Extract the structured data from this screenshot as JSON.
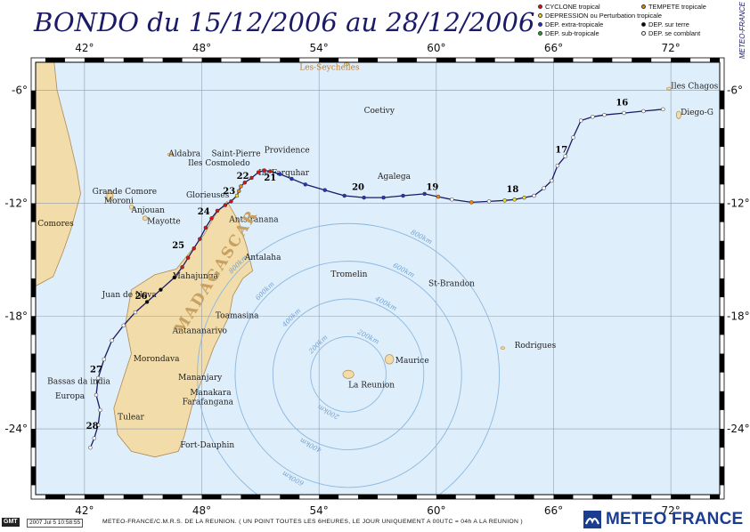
{
  "title": "BONDO du 15/12/2006 au 28/12/2006",
  "side_credit": "METEO-FRANCE",
  "legend": {
    "items": [
      {
        "label": "CYCLONE tropical",
        "color": "#dd1111"
      },
      {
        "label": "TEMPETE tropicale",
        "color": "#ee8811"
      },
      {
        "label": "DEPRESSION ou Perturbation tropicale",
        "color": "#eedd22"
      },
      {
        "label": "DEP. extra-tropicale",
        "color": "#2233cc"
      },
      {
        "label": "DEP. sur terre",
        "color": "#000000"
      },
      {
        "label": "DEP. sub-tropicale",
        "color": "#22aa22"
      },
      {
        "label": "DEP. se comblant",
        "color": "#ffffff"
      }
    ]
  },
  "map": {
    "lon_range": [
      39.5,
      74.5
    ],
    "lat_range": [
      -27.5,
      -4.5
    ],
    "lon_ticks": [
      42,
      48,
      54,
      60,
      66,
      72
    ],
    "lon_tick_labels": [
      "42°",
      "48°",
      "54°",
      "60°",
      "66°",
      "72°"
    ],
    "lat_ticks": [
      -6,
      -12,
      -18,
      -24
    ],
    "lat_tick_labels": [
      "-6°",
      "-12°",
      "-18°",
      "-24°"
    ],
    "ocean_color": "#dfeefb",
    "land_color": "#f1dcaa",
    "track_color": "#1a1a66",
    "range_circle_color": "#8bb8e0",
    "range_center": [
      55.5,
      -21.1
    ],
    "range_circles": [
      {
        "radius_km": 200,
        "label": "200km"
      },
      {
        "radius_km": 400,
        "label": "400km"
      },
      {
        "radius_km": 600,
        "label": "600km"
      },
      {
        "radius_km": 800,
        "label": "800km"
      }
    ]
  },
  "track": [
    [
      71.6,
      -7.0,
      "white"
    ],
    [
      70.6,
      -7.1,
      "white"
    ],
    [
      69.6,
      -7.2,
      "white"
    ],
    [
      68.6,
      -7.3,
      "white"
    ],
    [
      68.0,
      -7.4,
      "white"
    ],
    [
      67.4,
      -7.6,
      "white"
    ],
    [
      67.0,
      -8.5,
      "white"
    ],
    [
      66.6,
      -9.5,
      "white"
    ],
    [
      66.2,
      -10.0,
      "white"
    ],
    [
      65.9,
      -10.8,
      "white"
    ],
    [
      65.5,
      -11.2,
      "white"
    ],
    [
      65.0,
      -11.6,
      "white"
    ],
    [
      64.5,
      -11.7,
      "yellow"
    ],
    [
      64.0,
      -11.8,
      "yellow"
    ],
    [
      63.5,
      -11.85,
      "yellow"
    ],
    [
      62.7,
      -11.9,
      "white"
    ],
    [
      61.8,
      -11.95,
      "orange"
    ],
    [
      60.8,
      -11.8,
      "white"
    ],
    [
      60.1,
      -11.65,
      "orange"
    ],
    [
      59.4,
      -11.5,
      "blue"
    ],
    [
      58.3,
      -11.6,
      "blue"
    ],
    [
      57.3,
      -11.7,
      "blue"
    ],
    [
      56.3,
      -11.7,
      "blue"
    ],
    [
      55.3,
      -11.6,
      "blue"
    ],
    [
      54.3,
      -11.3,
      "blue"
    ],
    [
      53.3,
      -11.0,
      "blue"
    ],
    [
      52.6,
      -10.7,
      "blue"
    ],
    [
      52.0,
      -10.45,
      "blue"
    ],
    [
      51.5,
      -10.3,
      "red"
    ],
    [
      51.2,
      -10.25,
      "red"
    ],
    [
      50.9,
      -10.35,
      "red"
    ],
    [
      50.55,
      -10.65,
      "red"
    ],
    [
      50.2,
      -10.9,
      "red"
    ],
    [
      50.0,
      -11.1,
      "orange"
    ],
    [
      49.9,
      -11.35,
      "orange"
    ],
    [
      49.8,
      -11.6,
      "yellow"
    ],
    [
      49.5,
      -11.9,
      "red"
    ],
    [
      49.2,
      -12.1,
      "red"
    ],
    [
      48.8,
      -12.4,
      "red"
    ],
    [
      48.5,
      -12.8,
      "red"
    ],
    [
      48.2,
      -13.3,
      "red"
    ],
    [
      47.9,
      -13.9,
      "red"
    ],
    [
      47.6,
      -14.4,
      "red"
    ],
    [
      47.3,
      -14.9,
      "red"
    ],
    [
      47.0,
      -15.4,
      "red"
    ],
    [
      46.6,
      -15.95,
      "black"
    ],
    [
      45.9,
      -16.6,
      "black"
    ],
    [
      45.2,
      -17.25,
      "black"
    ],
    [
      44.6,
      -17.8,
      "white"
    ],
    [
      44.0,
      -18.5,
      "white"
    ],
    [
      43.4,
      -19.3,
      "white"
    ],
    [
      43.0,
      -20.3,
      "white"
    ],
    [
      42.7,
      -21.3,
      "white"
    ],
    [
      42.6,
      -22.2,
      "white"
    ],
    [
      42.8,
      -23.0,
      "white"
    ],
    [
      42.7,
      -23.8,
      "white"
    ],
    [
      42.5,
      -24.5,
      "white"
    ],
    [
      42.3,
      -25.0,
      "white"
    ]
  ],
  "day_labels": [
    {
      "text": "16",
      "lon": 69.5,
      "lat": -6.8
    },
    {
      "text": "17",
      "lon": 66.4,
      "lat": -9.3
    },
    {
      "text": "18",
      "lon": 63.9,
      "lat": -11.4
    },
    {
      "text": "19",
      "lon": 59.8,
      "lat": -11.3
    },
    {
      "text": "20",
      "lon": 56.0,
      "lat": -11.3
    },
    {
      "text": "21",
      "lon": 51.5,
      "lat": -10.8
    },
    {
      "text": "22",
      "lon": 50.1,
      "lat": -10.7
    },
    {
      "text": "23",
      "lon": 49.4,
      "lat": -11.5
    },
    {
      "text": "24",
      "lon": 48.1,
      "lat": -12.6
    },
    {
      "text": "25",
      "lon": 46.8,
      "lat": -14.4
    },
    {
      "text": "26",
      "lon": 44.9,
      "lat": -17.1
    },
    {
      "text": "27",
      "lon": 42.6,
      "lat": -21.0
    },
    {
      "text": "28",
      "lon": 42.4,
      "lat": -24.0
    }
  ],
  "places": [
    {
      "text": "Les-Seychelles",
      "lon": 53.0,
      "lat": -4.9,
      "color": "#c07a2a"
    },
    {
      "text": "Coetivy",
      "lon": 56.3,
      "lat": -7.2,
      "color": "#222222"
    },
    {
      "text": "Aldabra",
      "lon": 46.3,
      "lat": -9.5,
      "color": "#222222"
    },
    {
      "text": "Saint-Pierre",
      "lon": 48.5,
      "lat": -9.5,
      "color": "#222222"
    },
    {
      "text": "Providence",
      "lon": 51.2,
      "lat": -9.3,
      "color": "#222222"
    },
    {
      "text": "Iles Cosmoledo",
      "lon": 47.3,
      "lat": -10.0,
      "color": "#222222"
    },
    {
      "text": "Ile Farquhar",
      "lon": 50.9,
      "lat": -10.5,
      "color": "#222222"
    },
    {
      "text": "Agalega",
      "lon": 57.0,
      "lat": -10.7,
      "color": "#222222"
    },
    {
      "text": "Grande Comore",
      "lon": 42.4,
      "lat": -11.5,
      "color": "#222222"
    },
    {
      "text": "Moroni",
      "lon": 43.0,
      "lat": -12.0,
      "color": "#222222"
    },
    {
      "text": "Glorieuses",
      "lon": 47.2,
      "lat": -11.7,
      "color": "#222222"
    },
    {
      "text": "Anjouan",
      "lon": 44.4,
      "lat": -12.5,
      "color": "#222222"
    },
    {
      "text": "Mayotte",
      "lon": 45.2,
      "lat": -13.1,
      "color": "#222222"
    },
    {
      "text": "Antsiranana",
      "lon": 49.4,
      "lat": -13.0,
      "color": "#222222"
    },
    {
      "text": "Comores",
      "lon": 39.6,
      "lat": -13.2,
      "color": "#222222"
    },
    {
      "text": "Antalaha",
      "lon": 50.2,
      "lat": -15.0,
      "color": "#222222"
    },
    {
      "text": "Mahajunga",
      "lon": 46.5,
      "lat": -16.0,
      "color": "#222222"
    },
    {
      "text": "Tromelin",
      "lon": 54.6,
      "lat": -15.9,
      "color": "#222222"
    },
    {
      "text": "St-Brandon",
      "lon": 59.6,
      "lat": -16.4,
      "color": "#222222"
    },
    {
      "text": "Juan de Nova",
      "lon": 42.9,
      "lat": -17.0,
      "color": "#222222"
    },
    {
      "text": "Toamasina",
      "lon": 48.7,
      "lat": -18.1,
      "color": "#222222"
    },
    {
      "text": "Antananarivo",
      "lon": 46.5,
      "lat": -18.9,
      "color": "#222222"
    },
    {
      "text": "Rodrigues",
      "lon": 64.0,
      "lat": -19.7,
      "color": "#222222"
    },
    {
      "text": "Morondava",
      "lon": 44.5,
      "lat": -20.4,
      "color": "#222222"
    },
    {
      "text": "Maurice",
      "lon": 57.9,
      "lat": -20.5,
      "color": "#222222"
    },
    {
      "text": "Bassas da india",
      "lon": 40.1,
      "lat": -21.6,
      "color": "#222222"
    },
    {
      "text": "Mananjary",
      "lon": 46.8,
      "lat": -21.4,
      "color": "#222222"
    },
    {
      "text": "La Reunion",
      "lon": 55.5,
      "lat": -21.8,
      "color": "#222222"
    },
    {
      "text": "Manakara",
      "lon": 47.4,
      "lat": -22.2,
      "color": "#222222"
    },
    {
      "text": "Europa",
      "lon": 40.5,
      "lat": -22.4,
      "color": "#222222"
    },
    {
      "text": "Farafangana",
      "lon": 47.0,
      "lat": -22.7,
      "color": "#222222"
    },
    {
      "text": "Tulear",
      "lon": 43.7,
      "lat": -23.5,
      "color": "#222222"
    },
    {
      "text": "Fort-Dauphin",
      "lon": 46.9,
      "lat": -25.0,
      "color": "#222222"
    },
    {
      "text": "Iles Chagos",
      "lon": 72.0,
      "lat": -5.9,
      "color": "#222222"
    },
    {
      "text": "Diego-G",
      "lon": 72.5,
      "lat": -7.3,
      "color": "#222222"
    },
    {
      "text": "MADAGASCAR",
      "lon": 47.0,
      "lat": -19.0,
      "color": "#c8a060"
    }
  ],
  "footer": {
    "gmt": "GMT",
    "stamp": "2007 Jul 5 10:58:55",
    "text": "METEO-FRANCE/C.M.R.S. DE LA REUNION.  ( UN POINT TOUTES LES 6HEURES, LE JOUR UNIQUEMENT A 00UTC = 04h A LA REUNION )",
    "brand": "METEO FRANCE"
  }
}
